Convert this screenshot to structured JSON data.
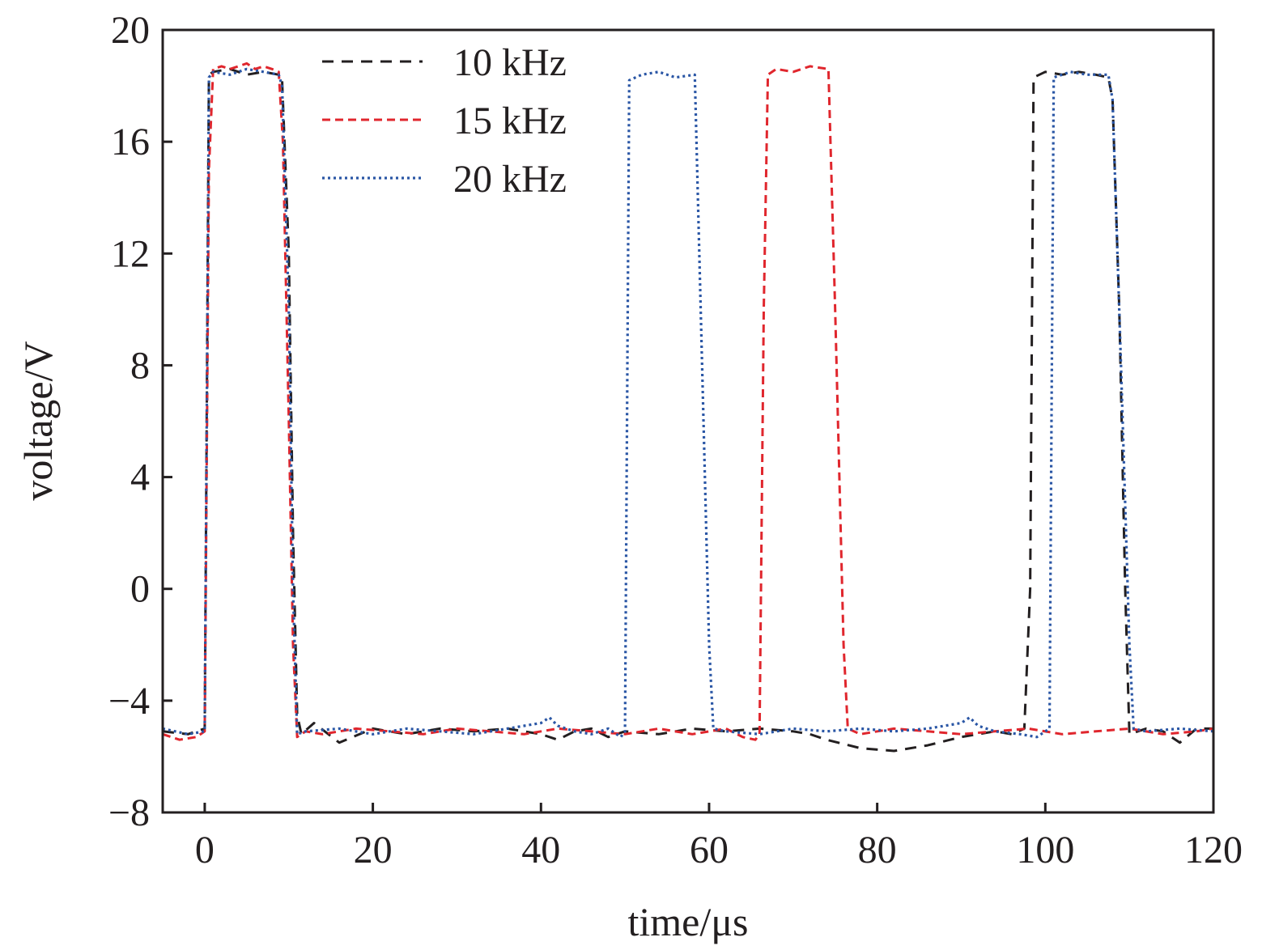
{
  "chart_data": {
    "type": "line",
    "title": "",
    "xlabel": "time/μs",
    "ylabel": "voltage/V",
    "xlim": [
      -5,
      120
    ],
    "ylim": [
      -8,
      20
    ],
    "xticks": [
      0,
      20,
      40,
      60,
      80,
      100,
      120
    ],
    "yticks": [
      -8,
      -4,
      0,
      4,
      8,
      12,
      16,
      20
    ],
    "xtick_labels": [
      "0",
      "20",
      "40",
      "60",
      "80",
      "100",
      "120"
    ],
    "ytick_labels": [
      "−8",
      "−4",
      "0",
      "4",
      "8",
      "12",
      "16",
      "20"
    ],
    "grid": false,
    "legend_position": "top-center",
    "series": [
      {
        "name": "10 kHz",
        "color": "#231f20",
        "style": "dashed",
        "x": [
          -5,
          -2,
          0,
          0.5,
          1,
          3,
          5,
          7,
          8.8,
          9.2,
          10,
          10.5,
          11,
          11.5,
          13,
          16,
          20,
          24,
          28,
          32,
          36,
          40,
          42,
          44,
          46,
          48,
          50,
          54,
          58,
          62,
          66,
          70,
          72,
          74,
          78,
          82,
          86,
          90,
          94,
          96,
          97.5,
          98.2,
          98.6,
          100,
          102,
          104,
          106,
          107.5,
          108,
          108.8,
          109.5,
          110,
          112,
          114,
          116,
          118,
          120
        ],
        "y": [
          -5.1,
          -5.2,
          -5.0,
          18.4,
          18.5,
          18.6,
          18.4,
          18.5,
          18.4,
          18.2,
          12.0,
          2.0,
          -4.5,
          -5.2,
          -4.8,
          -5.5,
          -5.0,
          -5.2,
          -5.0,
          -5.1,
          -5.0,
          -5.2,
          -5.4,
          -5.1,
          -5.0,
          -5.3,
          -5.1,
          -5.2,
          -5.0,
          -5.1,
          -5.0,
          -5.1,
          -5.2,
          -5.4,
          -5.7,
          -5.8,
          -5.6,
          -5.3,
          -5.1,
          -5.2,
          -5.0,
          0.0,
          18.3,
          18.5,
          18.4,
          18.5,
          18.4,
          18.3,
          17.5,
          10.0,
          0.0,
          -5.2,
          -5.0,
          -5.1,
          -5.5,
          -5.0,
          -5.0
        ]
      },
      {
        "name": "15 kHz",
        "color": "#e0262d",
        "style": "dashed",
        "x": [
          -5,
          -3,
          -1,
          0,
          0.5,
          1,
          2,
          3,
          4,
          5,
          6,
          7,
          8,
          8.8,
          9.3,
          10,
          10.5,
          11,
          12,
          14,
          18,
          22,
          26,
          30,
          34,
          38,
          42,
          46,
          50,
          54,
          58,
          62,
          64,
          65.5,
          66,
          66.5,
          67,
          68,
          70,
          72,
          74.2,
          75,
          76,
          76.5,
          78,
          82,
          86,
          90,
          94,
          98,
          102,
          106,
          110,
          114,
          118,
          120
        ],
        "y": [
          -5.2,
          -5.4,
          -5.3,
          -5.1,
          15.0,
          18.6,
          18.7,
          18.6,
          18.7,
          18.8,
          18.6,
          18.7,
          18.6,
          18.5,
          16.0,
          6.0,
          -2.0,
          -5.3,
          -5.1,
          -5.2,
          -5.0,
          -5.1,
          -5.2,
          -5.0,
          -5.1,
          -5.2,
          -5.0,
          -5.1,
          -5.2,
          -5.0,
          -5.2,
          -5.0,
          -5.3,
          -5.4,
          -5.2,
          10.0,
          18.4,
          18.6,
          18.5,
          18.7,
          18.6,
          10.0,
          -2.0,
          -5.0,
          -5.2,
          -5.0,
          -5.1,
          -5.2,
          -5.1,
          -5.0,
          -5.2,
          -5.1,
          -5.0,
          -5.2,
          -5.1,
          -5.0
        ]
      },
      {
        "name": "20 kHz",
        "color": "#2a56a5",
        "style": "dotted",
        "x": [
          -5,
          -2,
          0,
          0.5,
          1,
          3,
          5,
          7,
          8.8,
          9.2,
          10,
          10.5,
          11,
          12,
          16,
          20,
          24,
          28,
          32,
          36,
          40,
          41,
          42,
          44,
          46,
          48,
          49.5,
          50,
          50.5,
          52,
          54,
          56,
          58.3,
          59,
          60,
          60.5,
          62,
          66,
          70,
          74,
          78,
          82,
          86,
          90,
          91,
          92,
          94,
          97,
          99,
          100,
          100.5,
          101,
          103,
          105,
          107.5,
          108,
          109,
          110,
          110.5,
          112,
          116,
          120
        ],
        "y": [
          -5.0,
          -5.2,
          -5.1,
          18.3,
          18.5,
          18.4,
          18.6,
          18.5,
          18.4,
          18.0,
          10.0,
          0.0,
          -5.2,
          -5.1,
          -5.0,
          -5.2,
          -5.0,
          -5.1,
          -5.2,
          -5.0,
          -4.8,
          -4.6,
          -4.9,
          -5.1,
          -5.2,
          -5.0,
          -5.3,
          -5.1,
          18.2,
          18.4,
          18.5,
          18.3,
          18.4,
          10.0,
          -2.0,
          -5.0,
          -5.1,
          -5.2,
          -5.0,
          -5.1,
          -5.0,
          -5.1,
          -5.0,
          -4.8,
          -4.6,
          -4.9,
          -5.1,
          -5.2,
          -5.3,
          -5.1,
          -5.0,
          18.3,
          18.5,
          18.4,
          18.4,
          17.5,
          8.0,
          -2.0,
          -5.0,
          -5.1,
          -5.0,
          -5.1
        ]
      }
    ]
  }
}
